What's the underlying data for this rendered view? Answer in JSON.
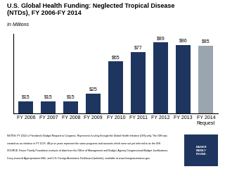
{
  "chart_data": {
    "type": "bar",
    "title": "U.S. Global Health Funding: Neglected Tropical Disease\n(NTDs), FY 2006-FY 2014",
    "subtitle": "In Millions",
    "categories": [
      "FY 2006",
      "FY 2007",
      "FY 2008",
      "FY 2009",
      "FY 2010",
      "FY 2011",
      "FY 2012",
      "FY 2013",
      "FY 2014\nRequest"
    ],
    "values": [
      15,
      15,
      15,
      25,
      65,
      77,
      89,
      86,
      85
    ],
    "value_labels": [
      "$15",
      "$15",
      "$15",
      "$25",
      "$65",
      "$77",
      "$89",
      "$86",
      "$85"
    ],
    "data_labels": true,
    "colors": [
      "#1e3560",
      "#1e3560",
      "#1e3560",
      "#1e3560",
      "#1e3560",
      "#1e3560",
      "#1e3560",
      "#1e3560",
      "#9aa5b0"
    ],
    "ylim": [
      0,
      100
    ],
    "yticks": [],
    "tick_labels": "x",
    "grid": false,
    "annotations": [
      "NOTES: FY 2014 is President's Budget Request to Congress. Represents funding through the Global Health Initiative (GHI) only. The GHI was",
      "created as an initiative in FY 2009.  All prior years represent the same programs and accounts which were not yet referred to as the GHI.",
      "SOURCE: Kaiser Family Foundation analysis of data from the Office of Management and Budget, Agency Congressional Budget Justifications,",
      "Congressional Appropriations Bills, and U.S. Foreign Assistance Dashboard (website), available at www.foreignassistance.gov.",
      "KAISER\nFAMILY\nFOUND."
    ]
  }
}
